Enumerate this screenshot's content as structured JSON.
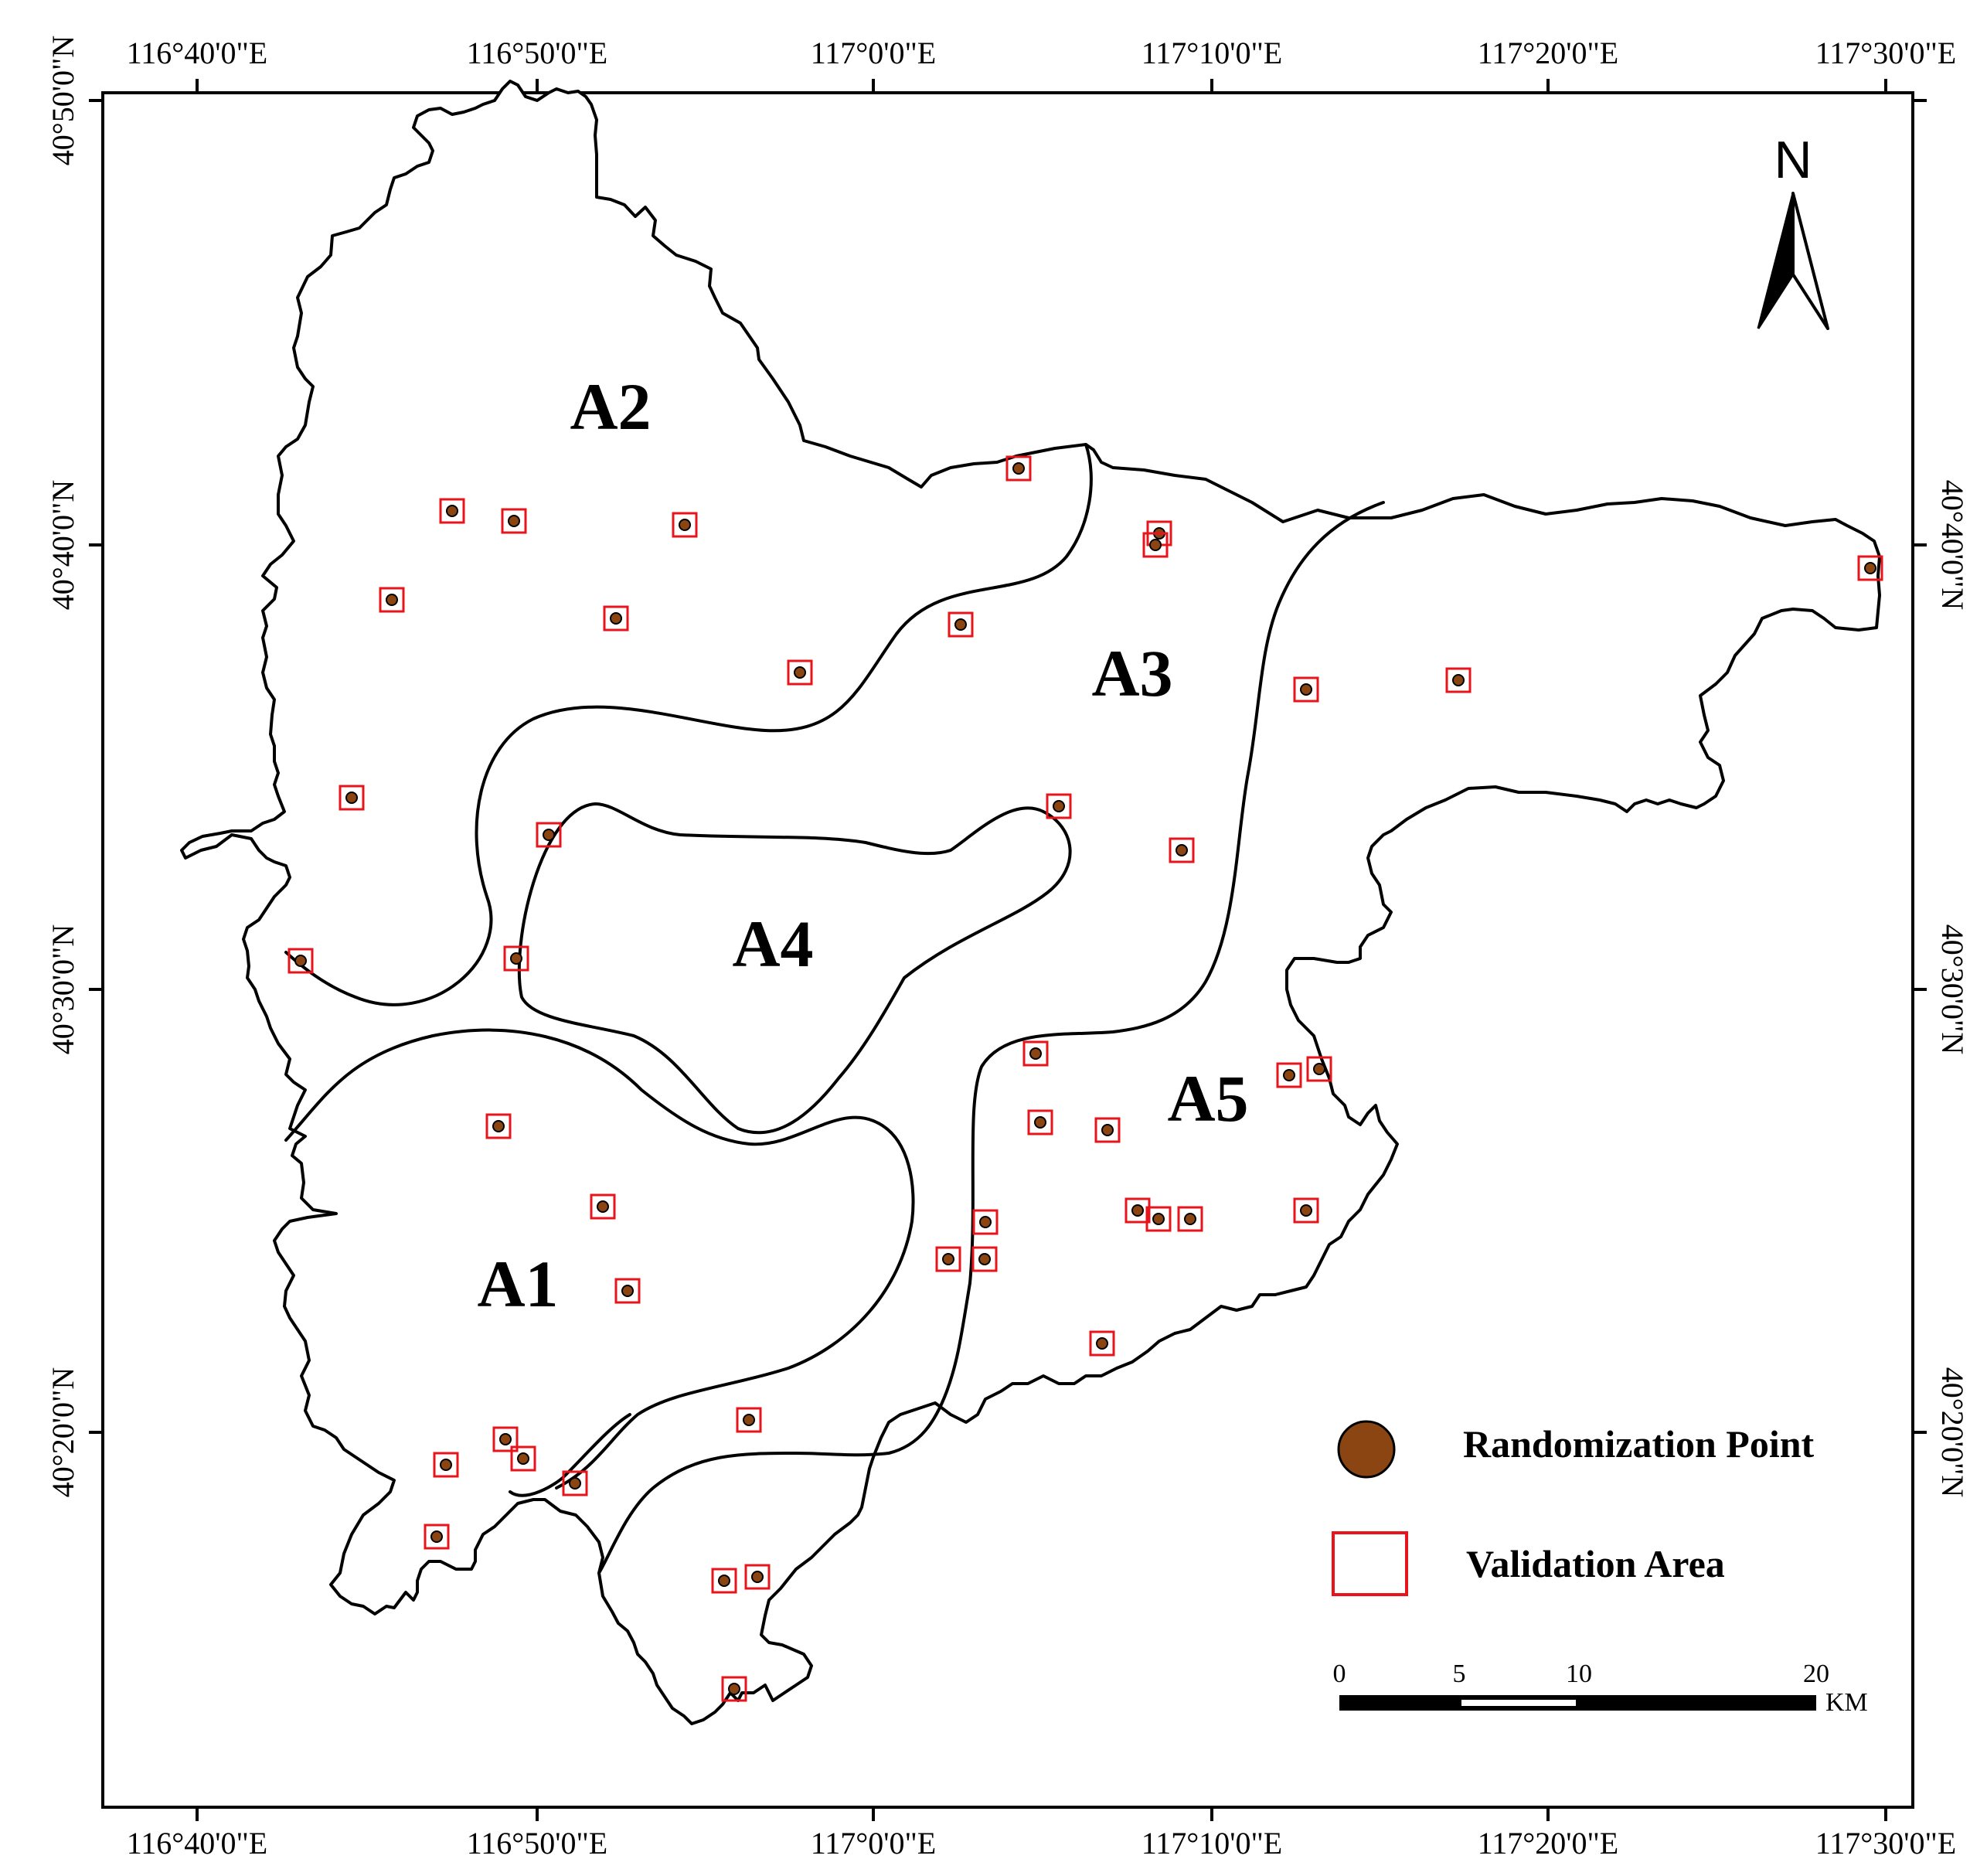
{
  "axes": {
    "top": [
      "116°40'0\"E",
      "116°50'0\"E",
      "117°0'0\"E",
      "117°10'0\"E",
      "117°20'0\"E",
      "117°30'0\"E"
    ],
    "bottom": [
      "116°40'0\"E",
      "116°50'0\"E",
      "117°0'0\"E",
      "117°10'0\"E",
      "117°20'0\"E",
      "117°30'0\"E"
    ],
    "left": [
      "40°50'0\"N",
      "40°40'0\"N",
      "40°30'0\"N",
      "40°20'0\"N"
    ],
    "right": [
      "40°40'0\"N",
      "40°30'0\"N",
      "40°20'0\"N"
    ]
  },
  "regions": [
    "A1",
    "A2",
    "A3",
    "A4",
    "A5"
  ],
  "north_arrow": {
    "label": "N",
    "icon": "north-arrow-icon"
  },
  "legend": {
    "point_label": "Randomization Point",
    "area_label": "Validation Area",
    "point_color": "#8B4513",
    "area_color": "#E8141C"
  },
  "scale_bar": {
    "ticks": [
      "0",
      "5",
      "10",
      "20"
    ],
    "unit": "KM"
  },
  "sample_point_count": 44
}
